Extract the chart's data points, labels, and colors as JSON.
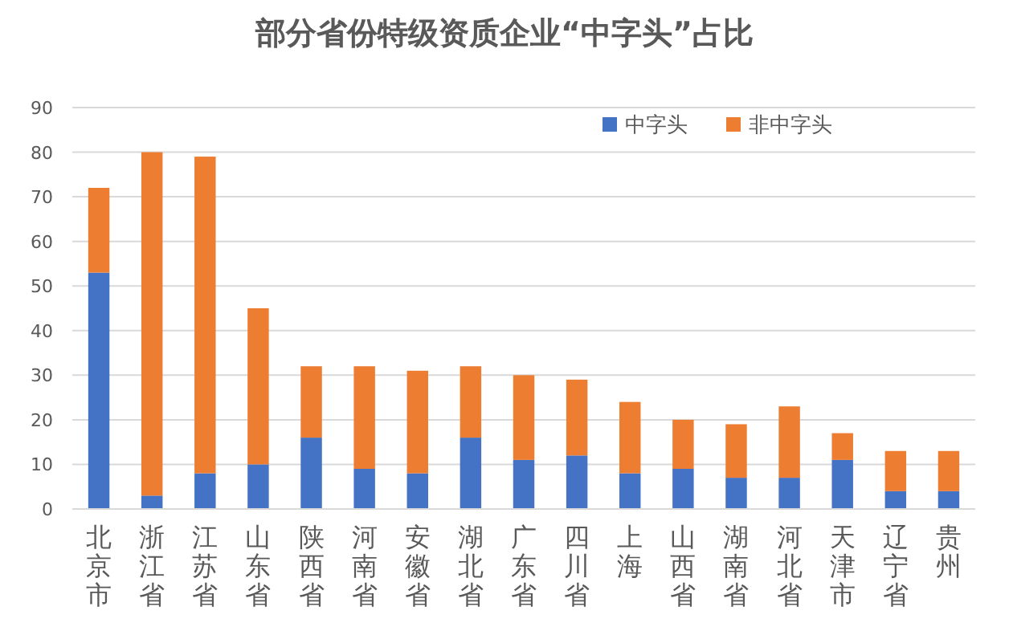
{
  "chart_data": {
    "type": "bar",
    "title": "部分省份特级资质企业“中字头”占比",
    "categories": [
      "北京市",
      "浙江省",
      "江苏省",
      "山东省",
      "陕西省",
      "河南省",
      "安徽省",
      "湖北省",
      "广东省",
      "四川省",
      "上海",
      "山西省",
      "湖南省",
      "河北省",
      "天津市",
      "辽宁省",
      "贵州"
    ],
    "stacked": true,
    "series": [
      {
        "name": "中字头",
        "color": "#4472c4",
        "values": [
          53,
          3,
          8,
          10,
          16,
          9,
          8,
          16,
          11,
          12,
          8,
          9,
          7,
          7,
          11,
          4,
          4
        ]
      },
      {
        "name": "非中字头",
        "color": "#ed7d31",
        "values": [
          19,
          77,
          71,
          35,
          16,
          23,
          23,
          16,
          19,
          17,
          16,
          11,
          12,
          16,
          6,
          9,
          9
        ]
      }
    ],
    "ylim": [
      0,
      90
    ],
    "yticks": [
      0,
      10,
      20,
      30,
      40,
      50,
      60,
      70,
      80,
      90
    ],
    "grid": "y",
    "legend": "top right"
  }
}
